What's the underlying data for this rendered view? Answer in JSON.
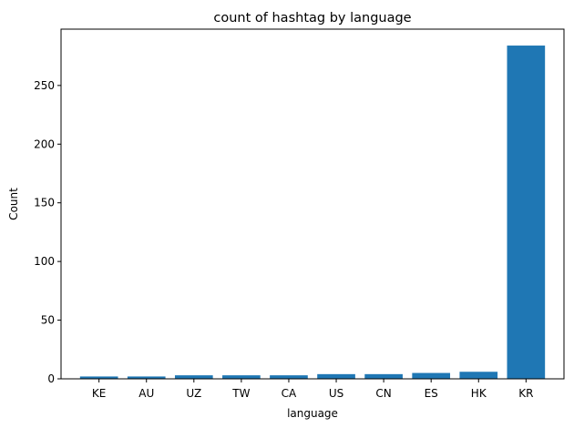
{
  "chart_data": {
    "type": "bar",
    "title": "count of hashtag by language",
    "xlabel": "language",
    "ylabel": "Count",
    "categories": [
      "KE",
      "AU",
      "UZ",
      "TW",
      "CA",
      "US",
      "CN",
      "ES",
      "HK",
      "KR"
    ],
    "values": [
      2,
      2,
      3,
      3,
      3,
      4,
      4,
      5,
      6,
      284
    ],
    "ylim": [
      0,
      298
    ],
    "yticks": [
      0,
      50,
      100,
      150,
      200,
      250
    ],
    "bar_color": "#1f77b4",
    "grid": false,
    "legend": "none"
  }
}
